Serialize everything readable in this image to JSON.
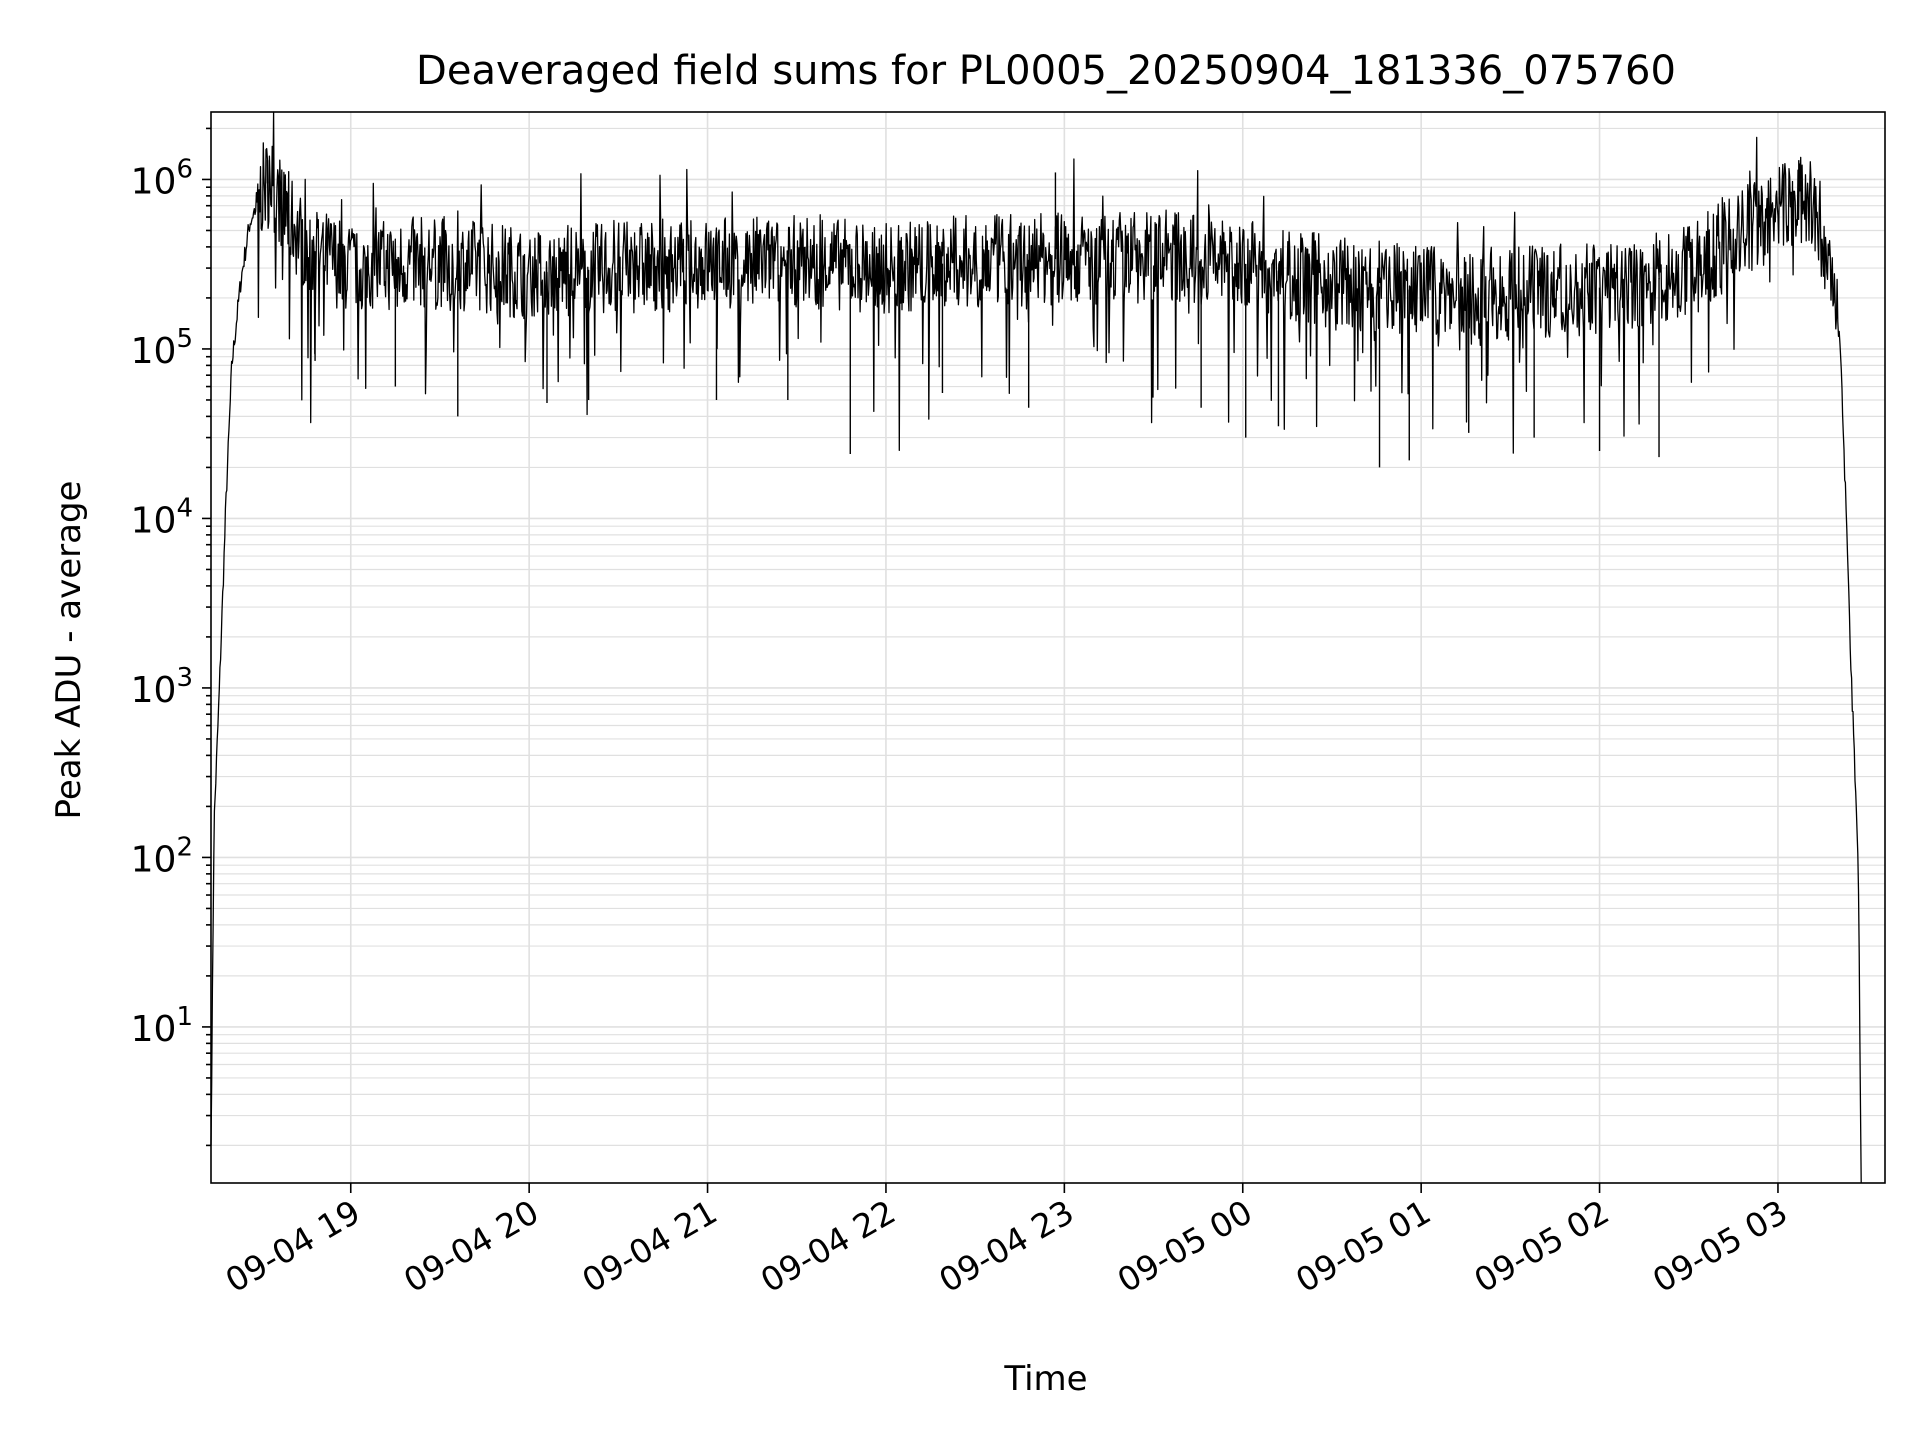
{
  "chart_data": {
    "type": "line",
    "title": "Deaveraged field sums for PL0005_20250904_181336_075760",
    "xlabel": "Time",
    "ylabel": "Peak ADU - average",
    "x_range": [
      "2025-09-04 18:13",
      "2025-09-05 03:36"
    ],
    "x_ticks": [
      "09-04 19",
      "09-04 20",
      "09-04 21",
      "09-04 22",
      "09-04 23",
      "09-05 00",
      "09-05 01",
      "09-05 02",
      "09-05 03"
    ],
    "x_tick_times": [
      "2025-09-04 19:00",
      "2025-09-04 20:00",
      "2025-09-04 21:00",
      "2025-09-04 22:00",
      "2025-09-04 23:00",
      "2025-09-05 00:00",
      "2025-09-05 01:00",
      "2025-09-05 02:00",
      "2025-09-05 03:00"
    ],
    "y_scale": "log",
    "ylim": [
      1.2,
      2500000
    ],
    "y_ticks": [
      {
        "value": 10,
        "base": "10",
        "exp": "1"
      },
      {
        "value": 100,
        "base": "10",
        "exp": "2"
      },
      {
        "value": 1000,
        "base": "10",
        "exp": "3"
      },
      {
        "value": 10000,
        "base": "10",
        "exp": "4"
      },
      {
        "value": 100000,
        "base": "10",
        "exp": "5"
      },
      {
        "value": 1000000,
        "base": "10",
        "exp": "6"
      }
    ],
    "grid": true,
    "series_color": "#000000",
    "grid_color": "#e0e0e0",
    "series": [
      {
        "points": [
          [
            "2025-09-04 18:13",
            2
          ],
          [
            "2025-09-04 18:14",
            150
          ],
          [
            "2025-09-04 18:16",
            1200
          ],
          [
            "2025-09-04 18:18",
            12000
          ],
          [
            "2025-09-04 18:20",
            80000
          ],
          [
            "2025-09-04 18:23",
            250000
          ],
          [
            "2025-09-04 18:26",
            550000
          ],
          [
            "2025-09-04 18:30",
            850000
          ],
          [
            "2025-09-04 18:33",
            1000000
          ],
          [
            "2025-09-04 18:38",
            650000
          ],
          [
            "2025-09-04 18:45",
            400000
          ],
          [
            "2025-09-04 19:00",
            300000
          ],
          [
            "2025-09-04 19:30",
            330000
          ],
          [
            "2025-09-04 20:00",
            280000
          ],
          [
            "2025-09-04 20:30",
            300000
          ],
          [
            "2025-09-04 21:00",
            320000
          ],
          [
            "2025-09-04 21:30",
            330000
          ],
          [
            "2025-09-04 22:00",
            300000
          ],
          [
            "2025-09-04 22:30",
            330000
          ],
          [
            "2025-09-04 23:00",
            340000
          ],
          [
            "2025-09-04 23:30",
            360000
          ],
          [
            "2025-09-05 00:00",
            320000
          ],
          [
            "2025-09-05 00:30",
            250000
          ],
          [
            "2025-09-05 01:00",
            220000
          ],
          [
            "2025-09-05 01:30",
            210000
          ],
          [
            "2025-09-05 02:00",
            230000
          ],
          [
            "2025-09-05 02:30",
            280000
          ],
          [
            "2025-09-05 02:45",
            450000
          ],
          [
            "2025-09-05 03:00",
            650000
          ],
          [
            "2025-09-05 03:08",
            800000
          ],
          [
            "2025-09-05 03:15",
            500000
          ],
          [
            "2025-09-05 03:18",
            250000
          ],
          [
            "2025-09-05 03:21",
            100000
          ],
          [
            "2025-09-05 03:23",
            10000
          ],
          [
            "2025-09-05 03:25",
            800
          ],
          [
            "2025-09-05 03:27",
            100
          ],
          [
            "2025-09-05 03:28",
            1.2
          ]
        ],
        "spikes": [
          [
            "2025-09-04 18:32",
            1300000
          ],
          [
            "2025-09-04 18:48",
            85000
          ],
          [
            "2025-09-04 19:15",
            60000
          ],
          [
            "2025-09-04 19:36",
            40000
          ],
          [
            "2025-09-04 20:06",
            48000
          ],
          [
            "2025-09-04 20:20",
            50000
          ],
          [
            "2025-09-04 21:03",
            50000
          ],
          [
            "2025-09-04 21:27",
            50000
          ],
          [
            "2025-09-04 21:48",
            24000
          ],
          [
            "2025-09-04 22:19",
            55000
          ],
          [
            "2025-09-04 22:48",
            45000
          ],
          [
            "2025-09-04 22:57",
            1100000
          ],
          [
            "2025-09-04 23:46",
            45000
          ],
          [
            "2025-09-05 00:01",
            30000
          ],
          [
            "2025-09-05 00:12",
            35000
          ],
          [
            "2025-09-05 00:46",
            20000
          ],
          [
            "2025-09-05 00:56",
            22000
          ],
          [
            "2025-09-05 01:16",
            32000
          ],
          [
            "2025-09-05 01:38",
            30000
          ],
          [
            "2025-09-05 02:00",
            25000
          ],
          [
            "2025-09-05 02:20",
            23000
          ],
          [
            "2025-09-05 03:07",
            1300000
          ]
        ]
      }
    ]
  }
}
